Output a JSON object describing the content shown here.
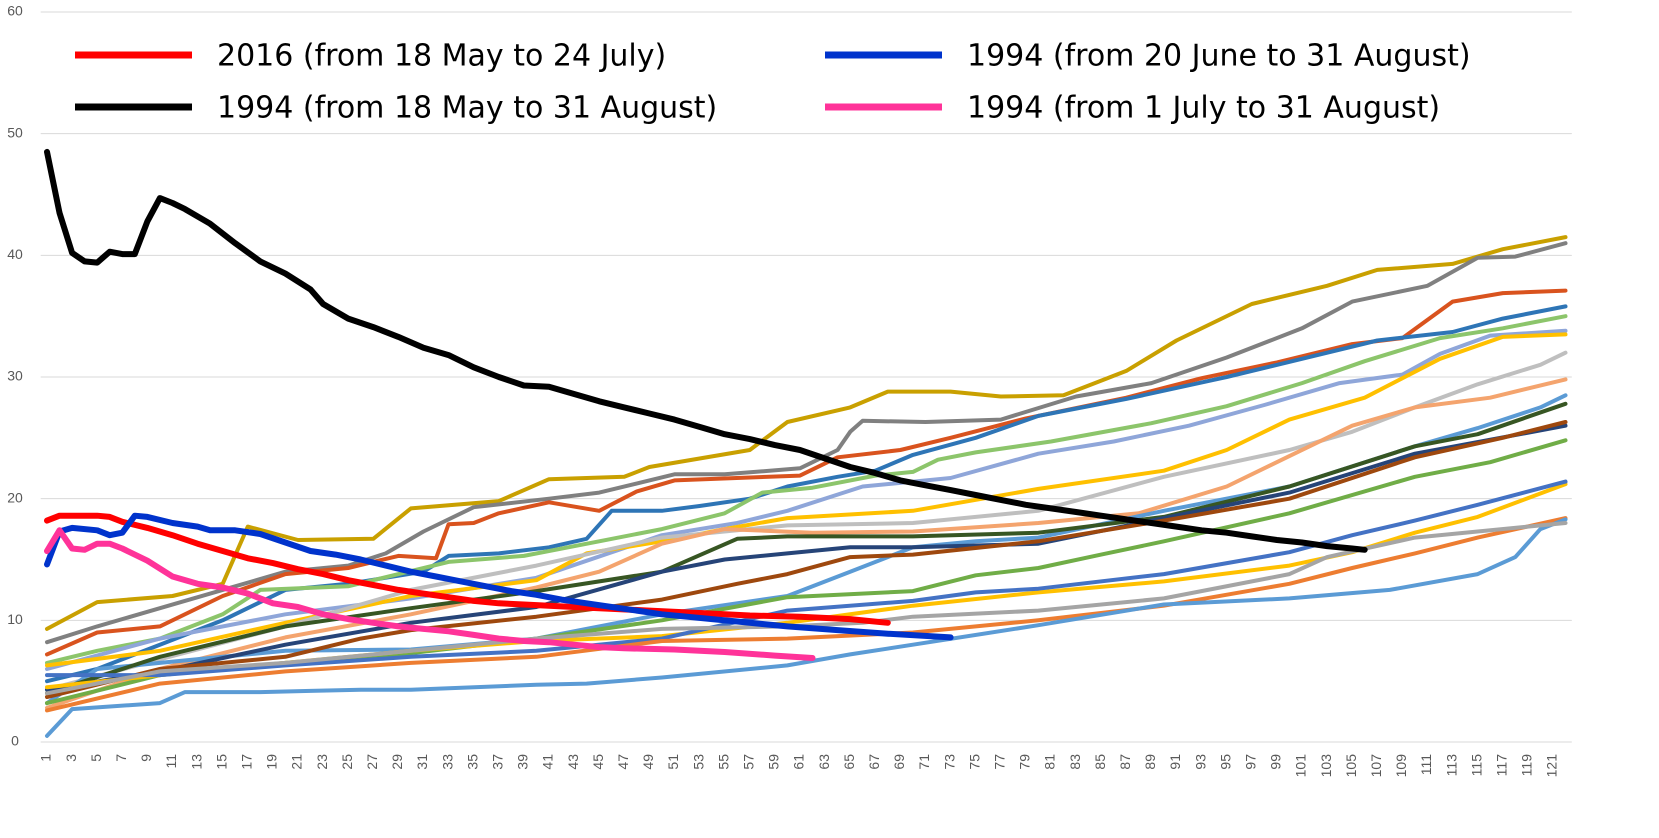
{
  "chart_data": {
    "type": "line",
    "xlim": [
      0.5,
      122.5
    ],
    "xticks": [
      1,
      3,
      5,
      7,
      9,
      11,
      13,
      15,
      17,
      19,
      21,
      23,
      25,
      27,
      29,
      31,
      33,
      35,
      37,
      39,
      41,
      43,
      45,
      47,
      49,
      51,
      53,
      55,
      57,
      59,
      61,
      63,
      65,
      67,
      69,
      71,
      73,
      75,
      77,
      79,
      81,
      83,
      85,
      87,
      89,
      91,
      93,
      95,
      97,
      99,
      101,
      103,
      105,
      107,
      109,
      111,
      113,
      115,
      117,
      119,
      121
    ],
    "ylim": [
      0,
      60
    ],
    "yticks": [
      0,
      10,
      20,
      30,
      40,
      50,
      60
    ],
    "grid": true,
    "legend": "top",
    "series": [
      {
        "color": "#c9a000",
        "x": [
          1,
          5,
          11,
          15,
          17,
          21,
          27,
          30,
          37,
          41,
          47,
          49,
          57,
          60,
          65,
          68,
          73,
          77,
          82,
          87,
          91,
          97,
          103,
          107,
          113,
          117,
          122
        ],
        "values": [
          9.3,
          11.5,
          12,
          13,
          17.7,
          16.6,
          16.7,
          19.2,
          19.8,
          21.6,
          21.8,
          22.6,
          24,
          26.3,
          27.5,
          28.8,
          28.8,
          28.4,
          28.5,
          30.5,
          33,
          36,
          37.5,
          38.8,
          39.3,
          40.5,
          41.5
        ]
      },
      {
        "color": "#808080",
        "x": [
          1,
          5,
          10,
          15,
          20,
          25,
          28,
          31,
          35,
          41,
          45,
          51,
          55,
          61,
          64,
          65,
          66,
          71,
          77,
          83,
          89,
          95,
          101,
          105,
          111,
          115,
          118,
          122
        ],
        "values": [
          8.2,
          9.5,
          11,
          12.5,
          14,
          14.5,
          15.5,
          17.3,
          19.3,
          20,
          20.5,
          22,
          22,
          22.5,
          24,
          25.5,
          26.4,
          26.3,
          26.5,
          28.4,
          29.5,
          31.6,
          34,
          36.2,
          37.5,
          39.8,
          39.9,
          41
        ]
      },
      {
        "color": "#d9531e",
        "x": [
          1,
          5,
          10,
          15,
          20,
          25,
          29,
          32,
          33,
          35,
          37,
          41,
          45,
          48,
          51,
          61,
          64,
          69,
          73,
          79,
          87,
          93,
          99,
          105,
          109,
          113,
          117,
          122
        ],
        "values": [
          7.2,
          9,
          9.5,
          12,
          13.8,
          14.3,
          15.3,
          15.1,
          17.9,
          18,
          18.8,
          19.7,
          19,
          20.6,
          21.5,
          21.9,
          23.4,
          24,
          25,
          26.6,
          28.3,
          29.9,
          31.2,
          32.7,
          33.2,
          36.2,
          36.9,
          37.1
        ]
      },
      {
        "color": "#2e75b6",
        "x": [
          1,
          5,
          10,
          15,
          20,
          25,
          31,
          33,
          37,
          41,
          44,
          46,
          50,
          53,
          57,
          60,
          64,
          67,
          70,
          75,
          80,
          87,
          95,
          101,
          107,
          113,
          117,
          122
        ],
        "values": [
          5,
          6,
          8,
          10,
          12.5,
          13,
          14,
          15.3,
          15.5,
          16,
          16.7,
          19,
          19,
          19.4,
          20,
          21,
          21.8,
          22.3,
          23.6,
          25,
          26.8,
          28.2,
          30,
          31.5,
          33,
          33.7,
          34.8,
          35.8
        ]
      },
      {
        "color": "#8cc56b",
        "x": [
          1,
          5,
          10,
          15,
          18,
          25,
          33,
          39,
          45,
          50,
          55,
          58,
          62,
          67,
          70,
          72,
          75,
          81,
          89,
          95,
          101,
          106,
          112,
          117,
          122
        ],
        "values": [
          6.5,
          7.5,
          8.5,
          10.5,
          12.5,
          12.8,
          14.8,
          15.3,
          16.5,
          17.5,
          18.8,
          20.5,
          20.9,
          21.9,
          22.2,
          23.2,
          23.8,
          24.7,
          26.2,
          27.6,
          29.5,
          31.3,
          33.2,
          34,
          35
        ]
      },
      {
        "color": "#8fa6d9",
        "x": [
          1,
          10,
          20,
          30,
          40,
          50,
          56,
          60,
          66,
          73,
          80,
          86,
          92,
          98,
          104,
          109,
          112,
          116,
          122
        ],
        "values": [
          6,
          8.5,
          10.5,
          11.8,
          13.5,
          17,
          18,
          19,
          21,
          21.7,
          23.7,
          24.7,
          26,
          27.7,
          29.5,
          30.2,
          31.9,
          33.4,
          33.8
        ]
      },
      {
        "color": "#ffc000",
        "x": [
          1,
          10,
          20,
          30,
          40,
          44,
          50,
          55,
          60,
          70,
          80,
          90,
          95,
          100,
          106,
          112,
          117,
          122
        ],
        "values": [
          6.3,
          7.5,
          9.8,
          12,
          13.3,
          15.5,
          16.5,
          17.5,
          18.4,
          19,
          20.8,
          22.3,
          24,
          26.5,
          28.3,
          31.5,
          33.3,
          33.5
        ]
      },
      {
        "color": "#bfbfbf",
        "x": [
          1,
          10,
          20,
          30,
          40,
          50,
          60,
          70,
          80,
          90,
          100,
          105,
          110,
          115,
          120,
          122
        ],
        "values": [
          4.3,
          6.8,
          9.5,
          12.5,
          14.5,
          16.8,
          17.8,
          18,
          19,
          21.8,
          24,
          25.5,
          27.5,
          29.4,
          31,
          32
        ]
      },
      {
        "color": "#f4a46e",
        "x": [
          1,
          10,
          20,
          30,
          40,
          45,
          50,
          55,
          62,
          70,
          80,
          88,
          95,
          100,
          105,
          110,
          116,
          122
        ],
        "values": [
          2.8,
          6,
          8.6,
          10.5,
          12.7,
          14,
          16.3,
          17.5,
          17.2,
          17.3,
          18,
          18.8,
          21,
          23.5,
          26,
          27.5,
          28.3,
          29.8
        ]
      },
      {
        "color": "#5b9bd5",
        "x": [
          1,
          5,
          10,
          15,
          20,
          30,
          40,
          50,
          60,
          65,
          70,
          75,
          80,
          90,
          100,
          110,
          115,
          120,
          122
        ],
        "values": [
          3.2,
          6,
          6.5,
          7,
          7.5,
          7.6,
          8.5,
          10.5,
          12,
          14,
          16,
          16.5,
          16.8,
          19,
          21,
          24.3,
          25.8,
          27.5,
          28.5
        ]
      },
      {
        "color": "#375623",
        "x": [
          1,
          10,
          20,
          30,
          40,
          50,
          56,
          60,
          70,
          80,
          90,
          100,
          110,
          115,
          122
        ],
        "values": [
          4,
          7,
          9.5,
          11,
          12.4,
          14,
          16.7,
          16.9,
          16.9,
          17.2,
          18.5,
          21,
          24.3,
          25.3,
          27.8
        ]
      },
      {
        "color": "#264478",
        "x": [
          1,
          10,
          20,
          30,
          40,
          50,
          55,
          60,
          65,
          70,
          80,
          90,
          100,
          110,
          122
        ],
        "values": [
          4.3,
          5.8,
          8,
          9.8,
          11.1,
          14,
          15,
          15.5,
          16,
          16,
          16.3,
          18.4,
          20.5,
          23.7,
          26
        ]
      },
      {
        "color": "#9e480e",
        "x": [
          1,
          10,
          20,
          26,
          30,
          40,
          50,
          56,
          60,
          65,
          70,
          80,
          90,
          100,
          110,
          117,
          122
        ],
        "values": [
          3.7,
          6,
          7,
          8.5,
          9.2,
          10.3,
          11.7,
          13,
          13.8,
          15.2,
          15.4,
          16.5,
          18.2,
          20,
          23.4,
          25,
          26.3
        ]
      },
      {
        "color": "#70ad47",
        "x": [
          1,
          10,
          20,
          30,
          40,
          50,
          60,
          70,
          75,
          80,
          85,
          90,
          100,
          110,
          116,
          122
        ],
        "values": [
          3.2,
          5.5,
          6.5,
          7.3,
          8.5,
          10,
          11.9,
          12.4,
          13.7,
          14.3,
          15.4,
          16.5,
          18.8,
          21.8,
          23,
          24.8
        ]
      },
      {
        "color": "#ffc000",
        "x": [
          1,
          10,
          20,
          30,
          40,
          50,
          60,
          70,
          80,
          90,
          100,
          105,
          110,
          115,
          122
        ],
        "values": [
          4.5,
          5.5,
          6.5,
          7.5,
          8.3,
          8.7,
          9.8,
          11.2,
          12.3,
          13.2,
          14.5,
          15.6,
          17.2,
          18.5,
          21.2
        ]
      },
      {
        "color": "#4472c4",
        "x": [
          1,
          10,
          20,
          30,
          40,
          50,
          60,
          70,
          75,
          80,
          90,
          100,
          105,
          110,
          115,
          122
        ],
        "values": [
          5.5,
          5.5,
          6.3,
          7,
          7.5,
          8.5,
          10.8,
          11.6,
          12.3,
          12.6,
          13.8,
          15.6,
          17,
          18.2,
          19.5,
          21.4
        ]
      },
      {
        "color": "#ed7d31",
        "x": [
          1,
          10,
          20,
          30,
          40,
          50,
          60,
          70,
          80,
          90,
          100,
          105,
          110,
          115,
          122
        ],
        "values": [
          2.6,
          4.8,
          5.8,
          6.5,
          7,
          8.3,
          8.5,
          9,
          10,
          11.2,
          13,
          14.3,
          15.5,
          16.8,
          18.4
        ]
      },
      {
        "color": "#5b9bd5",
        "x": [
          1,
          3,
          10,
          12,
          18,
          22,
          26,
          30,
          40,
          44,
          50,
          60,
          65,
          70,
          80,
          90,
          100,
          108,
          115,
          118,
          120,
          122
        ],
        "values": [
          0.5,
          2.7,
          3.2,
          4.1,
          4.1,
          4.2,
          4.3,
          4.3,
          4.7,
          4.8,
          5.3,
          6.3,
          7.2,
          8,
          9.6,
          11.3,
          11.8,
          12.5,
          13.8,
          15.2,
          17.5,
          18.3
        ]
      },
      {
        "color": "#a5a5a5",
        "x": [
          1,
          10,
          20,
          30,
          40,
          50,
          60,
          66,
          70,
          80,
          90,
          100,
          103,
          110,
          122
        ],
        "values": [
          4,
          5.8,
          6.5,
          7.5,
          8.5,
          9.3,
          9.5,
          9.8,
          10.3,
          10.8,
          11.8,
          13.8,
          15.2,
          16.8,
          18
        ]
      },
      {
        "name": "2016 (from 18 May to 24 July)",
        "color": "#ff0000",
        "x": [
          1,
          2,
          3,
          5,
          6,
          7,
          9,
          11,
          13,
          15,
          17,
          19,
          21,
          23,
          25,
          27,
          29,
          31,
          33,
          35,
          37,
          39,
          41,
          45,
          49,
          53,
          57,
          61,
          65,
          68
        ],
        "values": [
          18.2,
          18.6,
          18.6,
          18.6,
          18.5,
          18.1,
          17.6,
          17,
          16.3,
          15.7,
          15.1,
          14.7,
          14.2,
          13.8,
          13.3,
          12.9,
          12.5,
          12.2,
          11.9,
          11.6,
          11.4,
          11.3,
          11.2,
          11,
          10.8,
          10.6,
          10.4,
          10.3,
          10.1,
          9.8
        ]
      },
      {
        "name": "1994 (from 18 May to 31 August)",
        "color": "#000000",
        "x": [
          1,
          2,
          3,
          4,
          5,
          6,
          7,
          8,
          9,
          10,
          11,
          12,
          14,
          16,
          18,
          20,
          22,
          23,
          25,
          27,
          29,
          31,
          33,
          35,
          37,
          39,
          41,
          43,
          45,
          47,
          49,
          51,
          53,
          55,
          57,
          59,
          61,
          63,
          65,
          67,
          69,
          71,
          73,
          75,
          77,
          79,
          81,
          83,
          85,
          87,
          89,
          91,
          93,
          95,
          97,
          99,
          101,
          103,
          105,
          106
        ],
        "values": [
          48.5,
          43.5,
          40.2,
          39.5,
          39.4,
          40.3,
          40.1,
          40.1,
          42.8,
          44.7,
          44.3,
          43.8,
          42.6,
          41,
          39.5,
          38.5,
          37.2,
          36,
          34.8,
          34.1,
          33.3,
          32.4,
          31.8,
          30.8,
          30,
          29.3,
          29.2,
          28.6,
          28,
          27.5,
          27,
          26.5,
          25.9,
          25.3,
          24.9,
          24.4,
          24,
          23.3,
          22.6,
          22.1,
          21.5,
          21.1,
          20.7,
          20.3,
          19.9,
          19.5,
          19.2,
          18.9,
          18.6,
          18.3,
          18,
          17.7,
          17.4,
          17.2,
          16.9,
          16.6,
          16.4,
          16.1,
          15.9,
          15.8
        ]
      },
      {
        "name": "1994 (from 20 June to 31 August)",
        "color": "#0033cc",
        "x": [
          1,
          2,
          3,
          5,
          6,
          7,
          8,
          9,
          11,
          13,
          14,
          16,
          18,
          20,
          22,
          24,
          26,
          28,
          30,
          32,
          34,
          36,
          38,
          40,
          42,
          44,
          46,
          48,
          50,
          52,
          54,
          56,
          58,
          60,
          64,
          68,
          73
        ],
        "values": [
          14.6,
          17.3,
          17.6,
          17.4,
          17,
          17.2,
          18.6,
          18.5,
          18,
          17.7,
          17.4,
          17.4,
          17.1,
          16.4,
          15.7,
          15.4,
          15,
          14.5,
          14,
          13.6,
          13.2,
          12.8,
          12.4,
          12.1,
          11.7,
          11.4,
          11.1,
          10.8,
          10.5,
          10.3,
          10.1,
          9.9,
          9.7,
          9.5,
          9.2,
          8.9,
          8.6
        ]
      },
      {
        "name": "1994 (from 1 July to 31 August)",
        "color": "#ff3399",
        "x": [
          1,
          2,
          3,
          4,
          5,
          6,
          7,
          9,
          11,
          13,
          15,
          17,
          19,
          21,
          23,
          25,
          27,
          29,
          31,
          33,
          35,
          37,
          39,
          41,
          43,
          45,
          47,
          51,
          55,
          59,
          62
        ],
        "values": [
          15.7,
          17.4,
          15.9,
          15.8,
          16.3,
          16.3,
          15.9,
          14.9,
          13.6,
          13,
          12.7,
          12.2,
          11.4,
          11.1,
          10.5,
          10.1,
          9.8,
          9.5,
          9.3,
          9.1,
          8.8,
          8.5,
          8.3,
          8.2,
          8,
          7.8,
          7.7,
          7.6,
          7.4,
          7.1,
          6.9
        ]
      }
    ]
  }
}
